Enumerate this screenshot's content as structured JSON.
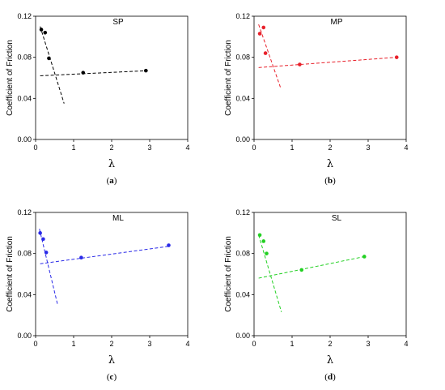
{
  "chart_data": [
    {
      "id": "a",
      "type": "scatter",
      "title": "SP",
      "caption_letter": "a",
      "color": "#000000",
      "xlabel": "λ",
      "ylabel": "Coefficient of Friction",
      "xlim": [
        0,
        4
      ],
      "ylim": [
        0,
        0.12
      ],
      "xticks": [
        "0",
        "1",
        "2",
        "3",
        "4"
      ],
      "yticks": [
        "0.00",
        "0.04",
        "0.08",
        "0.12"
      ],
      "points": [
        [
          0.15,
          0.107
        ],
        [
          0.25,
          0.104
        ],
        [
          0.35,
          0.079
        ],
        [
          1.25,
          0.065
        ],
        [
          2.9,
          0.067
        ]
      ],
      "fits": [
        {
          "from": [
            0.12,
            0.11
          ],
          "to": [
            0.75,
            0.035
          ]
        },
        {
          "from": [
            0.12,
            0.062
          ],
          "to": [
            2.95,
            0.067
          ]
        }
      ],
      "grid": false
    },
    {
      "id": "b",
      "type": "scatter",
      "title": "MP",
      "caption_letter": "b",
      "color": "#e8202a",
      "xlabel": "λ",
      "ylabel": "Coefficient of Friction",
      "xlim": [
        0,
        4
      ],
      "ylim": [
        0,
        0.12
      ],
      "xticks": [
        "0",
        "1",
        "2",
        "3",
        "4"
      ],
      "yticks": [
        "0.00",
        "0.04",
        "0.08",
        "0.12"
      ],
      "points": [
        [
          0.15,
          0.103
        ],
        [
          0.25,
          0.109
        ],
        [
          0.3,
          0.084
        ],
        [
          1.2,
          0.073
        ],
        [
          3.75,
          0.08
        ]
      ],
      "fits": [
        {
          "from": [
            0.12,
            0.112
          ],
          "to": [
            0.7,
            0.05
          ]
        },
        {
          "from": [
            0.12,
            0.07
          ],
          "to": [
            3.75,
            0.08
          ]
        }
      ],
      "grid": false
    },
    {
      "id": "c",
      "type": "scatter",
      "title": "ML",
      "caption_letter": "c",
      "color": "#2a2ae8",
      "xlabel": "λ",
      "ylabel": "Coefficient of Friction",
      "xlim": [
        0,
        4
      ],
      "ylim": [
        0,
        0.12
      ],
      "xticks": [
        "0",
        "1",
        "2",
        "3",
        "4"
      ],
      "yticks": [
        "0.00",
        "0.04",
        "0.08",
        "0.12"
      ],
      "points": [
        [
          0.12,
          0.1
        ],
        [
          0.2,
          0.094
        ],
        [
          0.28,
          0.081
        ],
        [
          1.2,
          0.076
        ],
        [
          3.5,
          0.088
        ]
      ],
      "fits": [
        {
          "from": [
            0.1,
            0.104
          ],
          "to": [
            0.58,
            0.03
          ]
        },
        {
          "from": [
            0.12,
            0.07
          ],
          "to": [
            3.5,
            0.087
          ]
        }
      ],
      "grid": false
    },
    {
      "id": "d",
      "type": "scatter",
      "title": "SL",
      "caption_letter": "d",
      "color": "#22d022",
      "xlabel": "λ",
      "ylabel": "Coefficient of Friction",
      "xlim": [
        0,
        4
      ],
      "ylim": [
        0,
        0.12
      ],
      "xticks": [
        "0",
        "1",
        "2",
        "3",
        "4"
      ],
      "yticks": [
        "0.00",
        "0.04",
        "0.08",
        "0.12"
      ],
      "points": [
        [
          0.15,
          0.098
        ],
        [
          0.25,
          0.092
        ],
        [
          0.33,
          0.08
        ],
        [
          1.25,
          0.064
        ],
        [
          2.9,
          0.077
        ]
      ],
      "fits": [
        {
          "from": [
            0.12,
            0.098
          ],
          "to": [
            0.72,
            0.023
          ]
        },
        {
          "from": [
            0.12,
            0.056
          ],
          "to": [
            2.9,
            0.077
          ]
        }
      ],
      "grid": false
    }
  ]
}
